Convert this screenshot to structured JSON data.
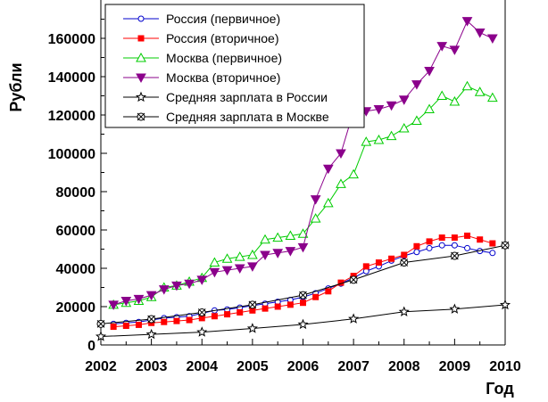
{
  "chart_data": {
    "type": "line",
    "title": "",
    "xlabel": "Год",
    "ylabel": "Рубли",
    "xlim": [
      2002,
      2010
    ],
    "ylim": [
      0,
      180000
    ],
    "x_ticks": [
      "2002",
      "2003",
      "2004",
      "2005",
      "2006",
      "2007",
      "2008",
      "2009",
      "2010"
    ],
    "y_ticks": [
      "0",
      "20000",
      "40000",
      "60000",
      "80000",
      "100000",
      "120000",
      "140000",
      "160000"
    ],
    "grid": false,
    "legend_position": "top-center",
    "series": [
      {
        "name": "Россия (первичное)",
        "color": "#0000cc",
        "marker": "circle-open",
        "x": [
          2002.25,
          2002.5,
          2002.75,
          2003.0,
          2003.25,
          2003.5,
          2003.75,
          2004.0,
          2004.25,
          2004.5,
          2004.75,
          2005.0,
          2005.25,
          2005.5,
          2005.75,
          2006.0,
          2006.25,
          2006.5,
          2006.75,
          2007.0,
          2007.25,
          2007.5,
          2007.75,
          2008.0,
          2008.25,
          2008.5,
          2008.75,
          2009.0,
          2009.25,
          2009.5,
          2009.75
        ],
        "values": [
          11000,
          11500,
          12000,
          13000,
          14000,
          14500,
          15000,
          16500,
          18000,
          18500,
          19500,
          20500,
          21500,
          22500,
          23500,
          25000,
          27000,
          29500,
          32000,
          35000,
          38500,
          41000,
          44000,
          46500,
          48500,
          50500,
          52000,
          52000,
          50500,
          49000,
          48000
        ]
      },
      {
        "name": "Россия (вторичное)",
        "color": "#ff0000",
        "marker": "square-filled",
        "x": [
          2002.25,
          2002.5,
          2002.75,
          2003.0,
          2003.25,
          2003.5,
          2003.75,
          2004.0,
          2004.25,
          2004.5,
          2004.75,
          2005.0,
          2005.25,
          2005.5,
          2005.75,
          2006.0,
          2006.25,
          2006.5,
          2006.75,
          2007.0,
          2007.25,
          2007.5,
          2007.75,
          2008.0,
          2008.25,
          2008.5,
          2008.75,
          2009.0,
          2009.25,
          2009.5,
          2009.75
        ],
        "values": [
          9500,
          10000,
          10500,
          11500,
          12000,
          12500,
          13000,
          14000,
          15000,
          16000,
          17000,
          18000,
          19000,
          20000,
          21000,
          22000,
          25000,
          28000,
          32500,
          36000,
          41000,
          43000,
          45000,
          47000,
          51500,
          54000,
          56000,
          56000,
          57000,
          55000,
          53000
        ]
      },
      {
        "name": "Москва (первичное)",
        "color": "#00cc00",
        "marker": "triangle-up-open",
        "x": [
          2002.25,
          2002.5,
          2002.75,
          2003.0,
          2003.25,
          2003.5,
          2003.75,
          2004.0,
          2004.25,
          2004.5,
          2004.75,
          2005.0,
          2005.25,
          2005.5,
          2005.75,
          2006.0,
          2006.25,
          2006.5,
          2006.75,
          2007.0,
          2007.25,
          2007.5,
          2007.75,
          2008.0,
          2008.25,
          2008.5,
          2008.75,
          2009.0,
          2009.25,
          2009.5,
          2009.75
        ],
        "values": [
          21000,
          22000,
          23000,
          25000,
          30000,
          31000,
          33000,
          35000,
          43000,
          45000,
          46000,
          47000,
          55000,
          56000,
          57000,
          58000,
          66000,
          74000,
          84000,
          89000,
          106000,
          107000,
          109000,
          113000,
          117000,
          123000,
          130000,
          127000,
          135000,
          132000,
          129000
        ]
      },
      {
        "name": "Москва (вторичное)",
        "color": "#8b008b",
        "marker": "triangle-down-filled",
        "x": [
          2002.25,
          2002.5,
          2002.75,
          2003.0,
          2003.25,
          2003.5,
          2003.75,
          2004.0,
          2004.25,
          2004.5,
          2004.75,
          2005.0,
          2005.25,
          2005.5,
          2005.75,
          2006.0,
          2006.25,
          2006.5,
          2006.75,
          2007.0,
          2007.25,
          2007.5,
          2007.75,
          2008.0,
          2008.25,
          2008.5,
          2008.75,
          2009.0,
          2009.25,
          2009.5,
          2009.75
        ],
        "values": [
          21000,
          23000,
          24000,
          26000,
          29000,
          31000,
          32000,
          34000,
          38000,
          39000,
          40000,
          41000,
          47000,
          48000,
          49000,
          51000,
          76000,
          92000,
          100000,
          122000,
          122000,
          123000,
          125000,
          128000,
          136000,
          143000,
          156000,
          154000,
          169000,
          163000,
          160000
        ]
      },
      {
        "name": "Средняя зарплата в России",
        "color": "#000000",
        "marker": "star-open",
        "x": [
          2002.0,
          2003.0,
          2004.0,
          2005.0,
          2006.0,
          2007.0,
          2008.0,
          2009.0,
          2010.0
        ],
        "values": [
          4400,
          5500,
          6700,
          8600,
          10700,
          13600,
          17300,
          18700,
          20900
        ]
      },
      {
        "name": "Средняя зарплата в Москве",
        "color": "#000000",
        "marker": "x-circle-open",
        "x": [
          2002.0,
          2003.0,
          2004.0,
          2005.0,
          2006.0,
          2007.0,
          2008.0,
          2009.0,
          2010.0
        ],
        "values": [
          11000,
          13500,
          17000,
          21000,
          26000,
          34000,
          43000,
          46500,
          52000
        ]
      }
    ]
  }
}
